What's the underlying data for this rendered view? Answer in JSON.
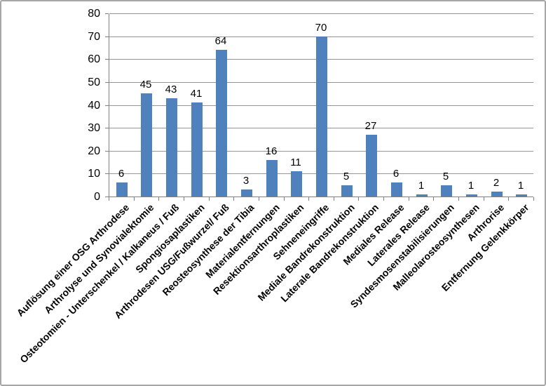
{
  "chart_data": {
    "type": "bar",
    "title": "",
    "xlabel": "",
    "ylabel": "",
    "categories": [
      "Auflösung einer OSG Arthrodese",
      "Arthrolyse und Synovialektomie",
      "Osteotomien - Unterschenkel / Kalkaneus / Fuß",
      "Spongiosaplastiken",
      "Arthrodesen USG/Fußwurzel/ Fuß",
      "Reosteosynthese der Tibia",
      "Materialentfernungen",
      "Resektionsarthroplastiken",
      "Sehneneingriffe",
      "Mediale Bandrekonstruktion",
      "Laterale Bandrekonstruktion",
      "Mediales Release",
      "Laterales Release",
      "Syndesmosenstabilisierungen",
      "Malleolarosteosynthesen",
      "Arthrorise",
      "Entfernung Gelenkkörper"
    ],
    "values": [
      6,
      45,
      43,
      41,
      64,
      3,
      16,
      11,
      70,
      5,
      27,
      6,
      1,
      5,
      1,
      2,
      1
    ],
    "ylim": [
      0,
      80
    ],
    "yticks": [
      0,
      10,
      20,
      30,
      40,
      50,
      60,
      70,
      80
    ],
    "grid": true,
    "legend": false,
    "data_labels": true,
    "bar_color": "#4f81bd",
    "gridline_color": "#969696",
    "axis_color": "#808080",
    "frame_border_color": "#a6a6a6",
    "label_rotation_deg": -45
  }
}
